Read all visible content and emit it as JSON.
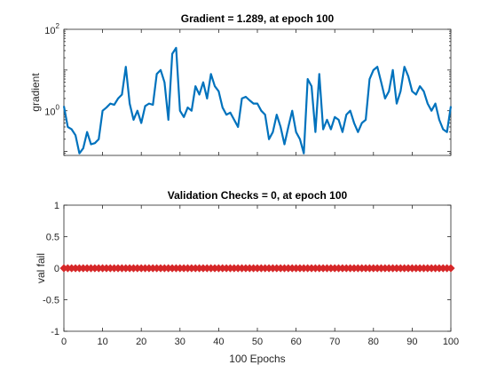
{
  "colors": {
    "line": "#0072BD",
    "marker": "#D62728",
    "axes": "#262626",
    "background": "#FFFFFF"
  },
  "chart_data": [
    {
      "type": "line",
      "title": "Gradient = 1.289, at epoch 100",
      "xlabel": "",
      "ylabel": "gradient",
      "yscale": "log",
      "xlim": [
        0,
        100
      ],
      "ylim": [
        0.08,
        100
      ],
      "yticks": [
        1,
        100
      ],
      "ytick_labels": [
        {
          "base": "10",
          "exp": "0"
        },
        {
          "base": "10",
          "exp": "2"
        }
      ],
      "x_tick_labels_shown": false,
      "grid": false,
      "x": [
        0,
        1,
        2,
        3,
        4,
        5,
        6,
        7,
        8,
        9,
        10,
        11,
        12,
        13,
        14,
        15,
        16,
        17,
        18,
        19,
        20,
        21,
        22,
        23,
        24,
        25,
        26,
        27,
        28,
        29,
        30,
        31,
        32,
        33,
        34,
        35,
        36,
        37,
        38,
        39,
        40,
        41,
        42,
        43,
        44,
        45,
        46,
        47,
        48,
        49,
        50,
        51,
        52,
        53,
        54,
        55,
        56,
        57,
        58,
        59,
        60,
        61,
        62,
        63,
        64,
        65,
        66,
        67,
        68,
        69,
        70,
        71,
        72,
        73,
        74,
        75,
        76,
        77,
        78,
        79,
        80,
        81,
        82,
        83,
        84,
        85,
        86,
        87,
        88,
        89,
        90,
        91,
        92,
        93,
        94,
        95,
        96,
        97,
        98,
        99,
        100
      ],
      "series": [
        {
          "values": [
            1.3,
            0.4,
            0.35,
            0.25,
            0.09,
            0.12,
            0.3,
            0.15,
            0.16,
            0.2,
            1.0,
            1.2,
            1.5,
            1.4,
            2.0,
            2.5,
            12.0,
            1.5,
            0.6,
            1.0,
            0.5,
            1.3,
            1.5,
            1.4,
            8.0,
            10.0,
            5.0,
            0.6,
            25.0,
            35.0,
            1.0,
            0.7,
            1.2,
            1.0,
            4.0,
            2.5,
            5.0,
            2.0,
            8.0,
            4.0,
            3.0,
            1.2,
            0.8,
            0.9,
            0.6,
            0.4,
            2.0,
            2.2,
            1.8,
            1.5,
            1.5,
            1.0,
            0.8,
            0.2,
            0.3,
            0.8,
            0.4,
            0.15,
            0.4,
            1.0,
            0.3,
            0.2,
            0.09,
            6.0,
            4.0,
            0.3,
            8.0,
            0.35,
            0.6,
            0.35,
            0.7,
            0.6,
            0.3,
            0.8,
            1.0,
            0.5,
            0.3,
            0.5,
            0.6,
            6.0,
            10.0,
            12.0,
            5.0,
            2.0,
            3.0,
            10.0,
            1.5,
            3.0,
            12.0,
            7.0,
            3.0,
            2.5,
            4.0,
            3.0,
            1.5,
            1.0,
            1.5,
            0.6,
            0.35,
            0.3,
            1.289
          ]
        }
      ]
    },
    {
      "type": "line",
      "title": "Validation Checks = 0, at epoch 100",
      "xlabel": "100 Epochs",
      "ylabel": "val fail",
      "xlim": [
        0,
        100
      ],
      "ylim": [
        -1,
        1
      ],
      "xticks": [
        0,
        10,
        20,
        30,
        40,
        50,
        60,
        70,
        80,
        90,
        100
      ],
      "xtick_labels": [
        "0",
        "10",
        "20",
        "30",
        "40",
        "50",
        "60",
        "70",
        "80",
        "90",
        "100"
      ],
      "yticks": [
        -1,
        -0.5,
        0,
        0.5,
        1
      ],
      "ytick_labels": [
        "-1",
        "-0.5",
        "0",
        "0.5",
        "1"
      ],
      "grid": false,
      "marker": "diamond",
      "x": [
        0,
        1,
        2,
        3,
        4,
        5,
        6,
        7,
        8,
        9,
        10,
        11,
        12,
        13,
        14,
        15,
        16,
        17,
        18,
        19,
        20,
        21,
        22,
        23,
        24,
        25,
        26,
        27,
        28,
        29,
        30,
        31,
        32,
        33,
        34,
        35,
        36,
        37,
        38,
        39,
        40,
        41,
        42,
        43,
        44,
        45,
        46,
        47,
        48,
        49,
        50,
        51,
        52,
        53,
        54,
        55,
        56,
        57,
        58,
        59,
        60,
        61,
        62,
        63,
        64,
        65,
        66,
        67,
        68,
        69,
        70,
        71,
        72,
        73,
        74,
        75,
        76,
        77,
        78,
        79,
        80,
        81,
        82,
        83,
        84,
        85,
        86,
        87,
        88,
        89,
        90,
        91,
        92,
        93,
        94,
        95,
        96,
        97,
        98,
        99,
        100
      ],
      "series": [
        {
          "values": [
            0,
            0,
            0,
            0,
            0,
            0,
            0,
            0,
            0,
            0,
            0,
            0,
            0,
            0,
            0,
            0,
            0,
            0,
            0,
            0,
            0,
            0,
            0,
            0,
            0,
            0,
            0,
            0,
            0,
            0,
            0,
            0,
            0,
            0,
            0,
            0,
            0,
            0,
            0,
            0,
            0,
            0,
            0,
            0,
            0,
            0,
            0,
            0,
            0,
            0,
            0,
            0,
            0,
            0,
            0,
            0,
            0,
            0,
            0,
            0,
            0,
            0,
            0,
            0,
            0,
            0,
            0,
            0,
            0,
            0,
            0,
            0,
            0,
            0,
            0,
            0,
            0,
            0,
            0,
            0,
            0,
            0,
            0,
            0,
            0,
            0,
            0,
            0,
            0,
            0,
            0,
            0,
            0,
            0,
            0,
            0,
            0,
            0,
            0,
            0,
            0
          ]
        }
      ]
    }
  ]
}
